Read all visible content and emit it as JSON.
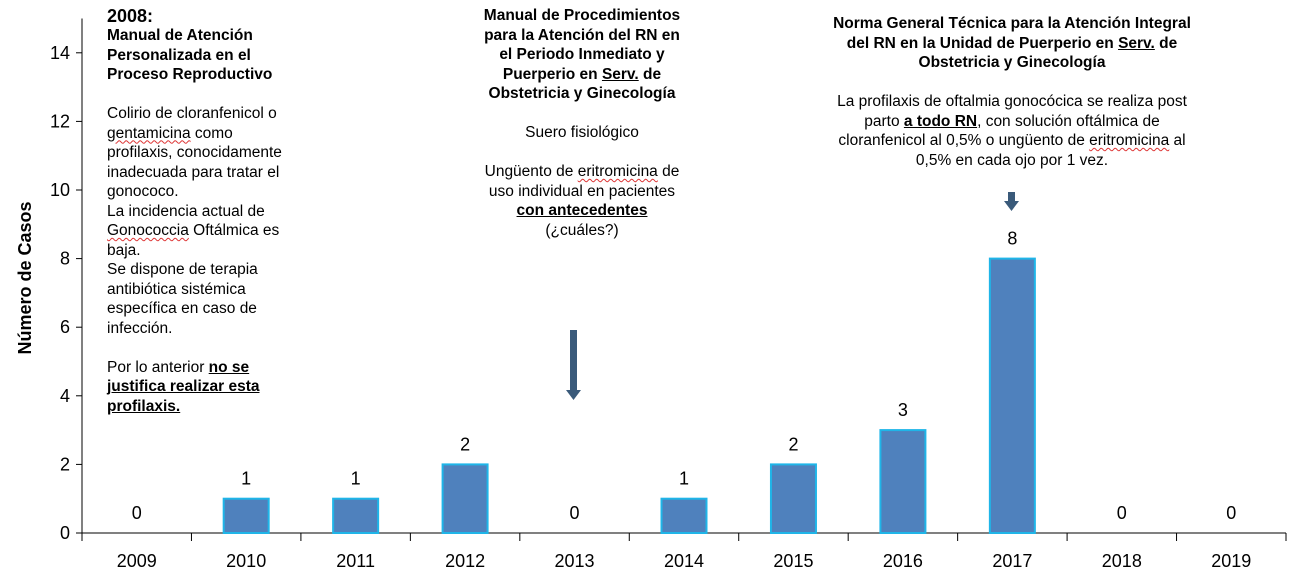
{
  "chart_data": {
    "type": "bar",
    "categories": [
      "2009",
      "2010",
      "2011",
      "2012",
      "2013",
      "2014",
      "2015",
      "2016",
      "2017",
      "2018",
      "2019"
    ],
    "values": [
      0,
      1,
      1,
      2,
      0,
      1,
      2,
      3,
      8,
      0,
      0
    ],
    "data_labels": [
      "0",
      "1",
      "1",
      "2",
      "0",
      "1",
      "2",
      "3",
      "8",
      "0",
      "0"
    ],
    "ylabel": "Número de Casos",
    "ylim": [
      0,
      15
    ],
    "yticks": [
      "0",
      "2",
      "4",
      "6",
      "8",
      "10",
      "12",
      "14"
    ],
    "bar_color": "#4f81bd",
    "bar_edge_color": "#1fb5e8"
  },
  "annotations": {
    "a2008": {
      "year": "2008:",
      "title": "Manual de Atención Personalizada en el Proceso Reproductivo",
      "p1_a": "Colirio de cloranfenicol o ",
      "p1_sq1": "gentamicina",
      "p1_b": " como profilaxis, conocidamente inadecuada para tratar el gonococo.",
      "p2_a": "La incidencia actual de ",
      "p2_sq": "Gonococcia",
      "p2_b": " Oftálmica es baja.",
      "p3": "Se dispone de terapia antibiótica sistémica específica en caso de infección.",
      "p4_a": "Por lo anterior ",
      "p4_bu": "no se justifica realizar esta profilaxis."
    },
    "a2013": {
      "title_a": "Manual de Procedimientos para la Atención del RN en el Periodo Inmediato y Puerperio en ",
      "title_serv": "Serv.",
      "title_b": " de Obstetricia y Ginecología",
      "line1": "Suero fisiológico",
      "line2_a": "Ungüento de ",
      "line2_sq": "eritromicina",
      "line2_b": " de uso individual en pacientes ",
      "line2_bu": "con antecedentes",
      "line2_c": " (¿cuáles?)"
    },
    "a2017": {
      "title_a": "Norma General Técnica para la Atención Integral del RN en la Unidad de Puerperio en ",
      "title_serv": "Serv.",
      "title_b": " de Obstetricia y Ginecología",
      "p_a": "La profilaxis de oftalmia gonocócica se realiza post parto ",
      "p_bu": "a todo RN",
      "p_b": ", con solución oftálmica de cloranfenicol al 0,5% o ungüento de ",
      "p_sq": "eritromicina",
      "p_c": " al 0,5% en cada ojo por 1 vez."
    }
  },
  "colors": {
    "arrow": "#3a5a7a",
    "axis": "#000000"
  }
}
